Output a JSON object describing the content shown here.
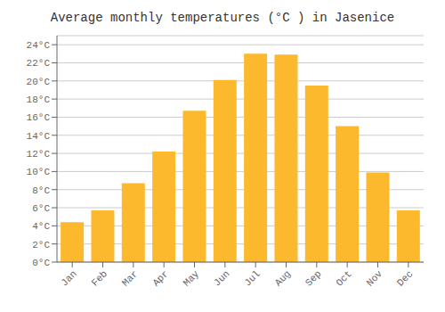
{
  "chart_data": {
    "type": "bar",
    "title": "Average monthly temperatures (°C ) in Jasenice",
    "categories": [
      "Jan",
      "Feb",
      "Mar",
      "Apr",
      "May",
      "Jun",
      "Jul",
      "Aug",
      "Sep",
      "Oct",
      "Nov",
      "Dec"
    ],
    "values": [
      4.4,
      5.7,
      8.7,
      12.2,
      16.7,
      20.1,
      23.0,
      22.9,
      19.5,
      15.0,
      9.9,
      5.7
    ],
    "color": "#FDB92E",
    "ylim": [
      0,
      25
    ],
    "yticks": [
      {
        "value": 0,
        "label": "0°C"
      },
      {
        "value": 2,
        "label": "2°C"
      },
      {
        "value": 4,
        "label": "4°C"
      },
      {
        "value": 6,
        "label": "6°C"
      },
      {
        "value": 8,
        "label": "8°C"
      },
      {
        "value": 10,
        "label": "10°C"
      },
      {
        "value": 12,
        "label": "12°C"
      },
      {
        "value": 14,
        "label": "14°C"
      },
      {
        "value": 16,
        "label": "16°C"
      },
      {
        "value": 18,
        "label": "18°C"
      },
      {
        "value": 20,
        "label": "20°C"
      },
      {
        "value": 22,
        "label": "22°C"
      },
      {
        "value": 24,
        "label": "24°C"
      }
    ],
    "grid": true
  }
}
